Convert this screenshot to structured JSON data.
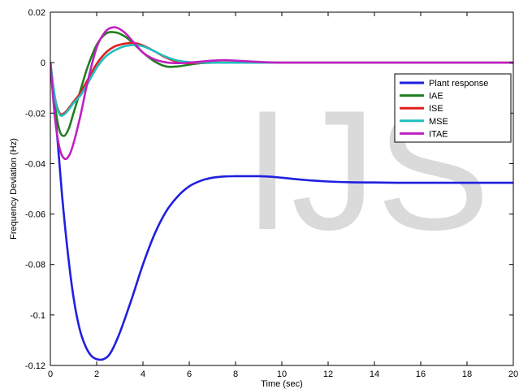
{
  "watermark": "IJS",
  "chart_data": {
    "type": "line",
    "title": "",
    "xlabel": "Time (sec)",
    "ylabel": "Frequency Deviation (Hz)",
    "xlim": [
      0,
      20
    ],
    "ylim": [
      -0.12,
      0.02
    ],
    "xticks": [
      0,
      2,
      4,
      6,
      8,
      10,
      12,
      14,
      16,
      18,
      20
    ],
    "xtick_labels": [
      "0",
      "2",
      "4",
      "6",
      "8",
      "10",
      "12",
      "14",
      "16",
      "18",
      "20"
    ],
    "yticks": [
      0.02,
      0,
      -0.02,
      -0.04,
      -0.06,
      -0.08,
      -0.1,
      -0.12
    ],
    "ytick_labels": [
      "0.02",
      "0",
      "-0.02",
      "-0.04",
      "-0.06",
      "-0.08",
      "-0.1",
      "-0.12"
    ],
    "grid": false,
    "legend_position": "upper right",
    "series": [
      {
        "name": "Plant response",
        "color": "#1f1fe0",
        "x": [
          0,
          0.25,
          0.5,
          0.75,
          1.0,
          1.25,
          1.5,
          1.75,
          2.0,
          2.3,
          2.6,
          3.0,
          3.5,
          4.0,
          4.5,
          5.0,
          5.5,
          6.0,
          6.5,
          7.0,
          7.5,
          8.0,
          8.5,
          9.0,
          9.5,
          10.0,
          11.0,
          12.0,
          13.0,
          14.0,
          15.0,
          16.0,
          17.0,
          18.0,
          19.0,
          20.0
        ],
        "y": [
          0,
          -0.024,
          -0.052,
          -0.075,
          -0.093,
          -0.105,
          -0.112,
          -0.116,
          -0.1175,
          -0.1175,
          -0.115,
          -0.107,
          -0.094,
          -0.08,
          -0.068,
          -0.059,
          -0.053,
          -0.049,
          -0.0468,
          -0.0456,
          -0.0451,
          -0.045,
          -0.045,
          -0.045,
          -0.0452,
          -0.0456,
          -0.0465,
          -0.0471,
          -0.0474,
          -0.0475,
          -0.0476,
          -0.0476,
          -0.0476,
          -0.0476,
          -0.0476,
          -0.0476
        ]
      },
      {
        "name": "IAE",
        "color": "#1f7f1f",
        "x": [
          0,
          0.2,
          0.4,
          0.6,
          0.8,
          1.0,
          1.3,
          1.6,
          2.0,
          2.4,
          2.8,
          3.2,
          3.6,
          4.0,
          4.5,
          5.0,
          5.5,
          6.0,
          6.5,
          7.0,
          8.0,
          9.0,
          10.0,
          12.0,
          14.0,
          16.0,
          18.0,
          20.0
        ],
        "y": [
          0,
          -0.017,
          -0.027,
          -0.029,
          -0.026,
          -0.02,
          -0.011,
          -0.002,
          0.007,
          0.0115,
          0.012,
          0.0105,
          0.0075,
          0.004,
          0.0005,
          -0.0015,
          -0.0015,
          -0.0008,
          -0.0002,
          0.0,
          0.0,
          0.0,
          0.0,
          0.0,
          0.0,
          0.0,
          0.0,
          0.0
        ]
      },
      {
        "name": "ISE",
        "color": "#e01f1f",
        "x": [
          0,
          0.2,
          0.4,
          0.6,
          0.8,
          1.0,
          1.3,
          1.6,
          2.0,
          2.4,
          2.8,
          3.2,
          3.6,
          4.0,
          4.5,
          5.0,
          5.5,
          6.0,
          6.5,
          7.0,
          8.0,
          9.0,
          10.0,
          12.0,
          14.0,
          16.0,
          18.0,
          20.0
        ],
        "y": [
          0,
          -0.014,
          -0.02,
          -0.02,
          -0.018,
          -0.0155,
          -0.012,
          -0.007,
          -0.0005,
          0.004,
          0.0065,
          0.0075,
          0.0078,
          0.0068,
          0.0045,
          0.002,
          0.0003,
          -0.0002,
          -0.0001,
          0.0,
          0.0,
          0.0,
          0.0,
          0.0,
          0.0,
          0.0,
          0.0,
          0.0
        ]
      },
      {
        "name": "MSE",
        "color": "#1fbfbf",
        "x": [
          0,
          0.2,
          0.4,
          0.6,
          0.8,
          1.0,
          1.3,
          1.6,
          2.0,
          2.4,
          2.8,
          3.2,
          3.6,
          4.0,
          4.5,
          5.0,
          5.5,
          6.0,
          6.5,
          7.0,
          8.0,
          9.0,
          10.0,
          12.0,
          14.0,
          16.0,
          18.0,
          20.0
        ],
        "y": [
          0,
          -0.014,
          -0.0205,
          -0.0205,
          -0.0185,
          -0.016,
          -0.013,
          -0.0085,
          -0.002,
          0.0025,
          0.005,
          0.0065,
          0.007,
          0.0065,
          0.0045,
          0.0023,
          0.0008,
          0.0002,
          0.0,
          0.0,
          0.0,
          0.0,
          0.0,
          0.0,
          0.0,
          0.0,
          0.0,
          0.0
        ]
      },
      {
        "name": "ITAE",
        "color": "#c020c0",
        "x": [
          0,
          0.2,
          0.4,
          0.6,
          0.8,
          1.0,
          1.3,
          1.6,
          2.0,
          2.4,
          2.8,
          3.2,
          3.6,
          4.0,
          4.5,
          5.0,
          5.5,
          6.0,
          6.5,
          7.0,
          7.5,
          8.0,
          9.0,
          10.0,
          12.0,
          14.0,
          16.0,
          18.0,
          20.0
        ],
        "y": [
          0,
          -0.022,
          -0.034,
          -0.038,
          -0.037,
          -0.032,
          -0.021,
          -0.008,
          0.006,
          0.0125,
          0.014,
          0.012,
          0.008,
          0.004,
          0.0013,
          0.0001,
          -0.0002,
          0.0,
          0.0004,
          0.0008,
          0.001,
          0.0008,
          0.0003,
          0.0,
          0.0,
          0.0,
          0.0,
          0.0,
          0.0
        ]
      }
    ]
  }
}
